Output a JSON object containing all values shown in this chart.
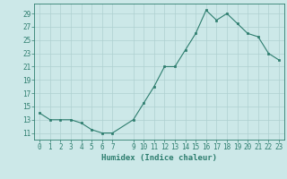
{
  "x": [
    0,
    1,
    2,
    3,
    4,
    5,
    6,
    7,
    9,
    10,
    11,
    12,
    13,
    14,
    15,
    16,
    17,
    18,
    19,
    20,
    21,
    22,
    23
  ],
  "y": [
    14,
    13,
    13,
    13,
    12.5,
    11.5,
    11,
    11,
    13,
    15.5,
    18,
    21,
    21,
    23.5,
    26,
    29.5,
    28,
    29,
    27.5,
    26,
    25.5,
    23,
    22
  ],
  "line_color": "#2d7d6e",
  "marker_color": "#2d7d6e",
  "bg_color": "#cce8e8",
  "grid_color": "#aed0d0",
  "xlabel": "Humidex (Indice chaleur)",
  "xlim": [
    -0.5,
    23.5
  ],
  "ylim": [
    10,
    30.5
  ],
  "yticks": [
    11,
    13,
    15,
    17,
    19,
    21,
    23,
    25,
    27,
    29
  ],
  "xticks": [
    0,
    1,
    2,
    3,
    4,
    5,
    6,
    7,
    9,
    10,
    11,
    12,
    13,
    14,
    15,
    16,
    17,
    18,
    19,
    20,
    21,
    22,
    23
  ],
  "tick_fontsize": 5.5,
  "label_fontsize": 6.5
}
